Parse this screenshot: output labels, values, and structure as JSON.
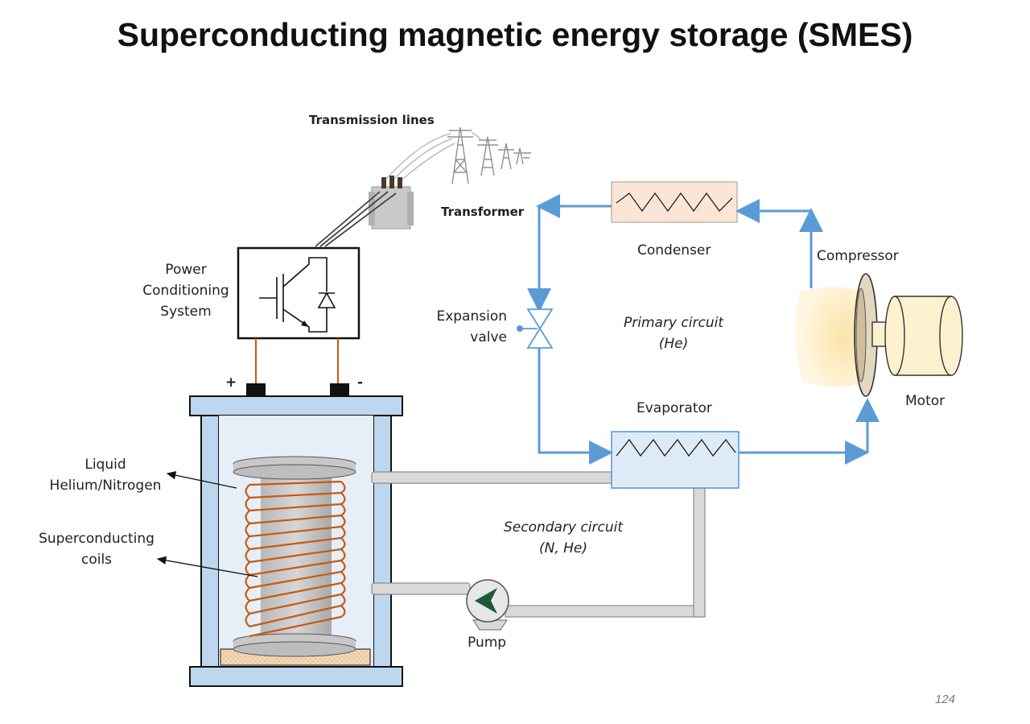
{
  "title": "Superconducting magnetic energy storage (SMES)",
  "labels": {
    "transmission_lines": "Transmission lines",
    "transformer": "Transformer",
    "pcs_line1": "Power",
    "pcs_line2": "Conditioning",
    "pcs_line3": "System",
    "plus": "+",
    "minus": "-",
    "liquid_line1": "Liquid",
    "liquid_line2": "Helium/Nitrogen",
    "coils_line1": "Superconducting",
    "coils_line2": "coils",
    "condenser": "Condenser",
    "compressor": "Compressor",
    "expansion_line1": "Expansion",
    "expansion_line2": "valve",
    "primary_line1": "Primary circuit",
    "primary_line2": "(He)",
    "evaporator": "Evaporator",
    "motor": "Motor",
    "secondary_line1": "Secondary circuit",
    "secondary_line2": "(N, He)",
    "pump": "Pump"
  },
  "page_number": "124",
  "colors": {
    "flow_arrow": "#5b9bd5",
    "vessel": "#bdd7ee",
    "coil": "#c55a11",
    "condenser_fill": "#fbe5d6",
    "evaporator_fill": "#deebf7",
    "pipe": "#d9d9d9"
  }
}
